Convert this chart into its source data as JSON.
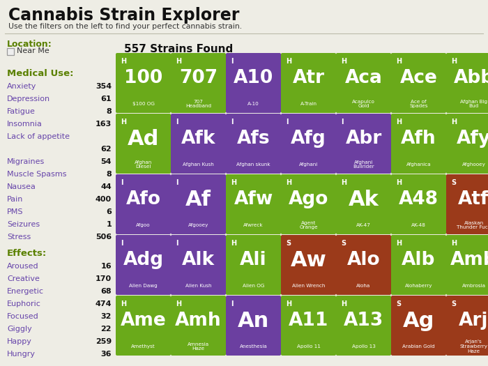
{
  "title": "Cannabis Strain Explorer",
  "subtitle": "Use the filters on the left to find your perfect cannabis strain.",
  "strains_found": "557 Strains Found",
  "bg_color": "#eeede5",
  "color_H": "#6aaa1a",
  "color_I": "#6b3fa0",
  "color_S": "#9b3a1a",
  "left_panel": {
    "location_label": "Location:",
    "near_me": "Near Me",
    "medical_label": "Medical Use:",
    "medical": [
      [
        "Anxiety",
        "354"
      ],
      [
        "Depression",
        "61"
      ],
      [
        "Fatigue",
        "8"
      ],
      [
        "Insomnia",
        "163"
      ],
      [
        "Lack of appetite",
        ""
      ],
      [
        "",
        "62"
      ],
      [
        "Migraines",
        "54"
      ],
      [
        "Muscle Spasms",
        "8"
      ],
      [
        "Nausea",
        "44"
      ],
      [
        "Pain",
        "400"
      ],
      [
        "PMS",
        "6"
      ],
      [
        "Seizures",
        "1"
      ],
      [
        "Stress",
        "506"
      ]
    ],
    "effects_label": "Effects:",
    "effects": [
      [
        "Aroused",
        "16"
      ],
      [
        "Creative",
        "170"
      ],
      [
        "Energetic",
        "68"
      ],
      [
        "Euphoric",
        "474"
      ],
      [
        "Focused",
        "32"
      ],
      [
        "Giggly",
        "22"
      ],
      [
        "Happy",
        "259"
      ],
      [
        "Hungry",
        "36"
      ]
    ]
  },
  "strains": [
    {
      "symbol": "100",
      "type": "H",
      "name": "$100 OG",
      "color": "H"
    },
    {
      "symbol": "707",
      "type": "H",
      "name": "707\nHeadband",
      "color": "H"
    },
    {
      "symbol": "A10",
      "type": "I",
      "name": "A-10",
      "color": "I"
    },
    {
      "symbol": "Atr",
      "type": "H",
      "name": "A-Train",
      "color": "H"
    },
    {
      "symbol": "Aca",
      "type": "H",
      "name": "Acapulco\nGold",
      "color": "H"
    },
    {
      "symbol": "Ace",
      "type": "H",
      "name": "Ace of\nSpades",
      "color": "H"
    },
    {
      "symbol": "Abb",
      "type": "H",
      "name": "Afghan Big\nBud",
      "color": "H"
    },
    {
      "symbol": "Ad",
      "type": "H",
      "name": "Afghan\nDiesel",
      "color": "H"
    },
    {
      "symbol": "Afk",
      "type": "I",
      "name": "Afghan Kush",
      "color": "I"
    },
    {
      "symbol": "Afs",
      "type": "I",
      "name": "Afghan skunk",
      "color": "I"
    },
    {
      "symbol": "Afg",
      "type": "I",
      "name": "Afghani",
      "color": "I"
    },
    {
      "symbol": "Abr",
      "type": "I",
      "name": "Afghani\nBullrider",
      "color": "I"
    },
    {
      "symbol": "Afh",
      "type": "H",
      "name": "Afghanica",
      "color": "H"
    },
    {
      "symbol": "Afy",
      "type": "H",
      "name": "Afghooey",
      "color": "H"
    },
    {
      "symbol": "Afo",
      "type": "I",
      "name": "Afgoo",
      "color": "I"
    },
    {
      "symbol": "Af",
      "type": "I",
      "name": "Afgooey",
      "color": "I"
    },
    {
      "symbol": "Afw",
      "type": "H",
      "name": "Afwreck",
      "color": "H"
    },
    {
      "symbol": "Ago",
      "type": "H",
      "name": "Agent\nOrange",
      "color": "H"
    },
    {
      "symbol": "Ak",
      "type": "H",
      "name": "AK-47",
      "color": "H"
    },
    {
      "symbol": "A48",
      "type": "H",
      "name": "AK-48",
      "color": "H"
    },
    {
      "symbol": "Atf",
      "type": "S",
      "name": "Alaskan\nThunder Fuck",
      "color": "S"
    },
    {
      "symbol": "Adg",
      "type": "I",
      "name": "Alien Dawg",
      "color": "I"
    },
    {
      "symbol": "Alk",
      "type": "I",
      "name": "Alien Kush",
      "color": "I"
    },
    {
      "symbol": "Ali",
      "type": "H",
      "name": "Alien OG",
      "color": "H"
    },
    {
      "symbol": "Aw",
      "type": "S",
      "name": "Alien Wrench",
      "color": "S"
    },
    {
      "symbol": "Alo",
      "type": "S",
      "name": "Aloha",
      "color": "S"
    },
    {
      "symbol": "Alb",
      "type": "H",
      "name": "Alohaberry",
      "color": "H"
    },
    {
      "symbol": "Amb",
      "type": "H",
      "name": "Ambrosia",
      "color": "H"
    },
    {
      "symbol": "Ame",
      "type": "H",
      "name": "Amethyst",
      "color": "H"
    },
    {
      "symbol": "Amh",
      "type": "H",
      "name": "Amnesia\nHaze",
      "color": "H"
    },
    {
      "symbol": "An",
      "type": "I",
      "name": "Anesthesia",
      "color": "I"
    },
    {
      "symbol": "A11",
      "type": "H",
      "name": "Apollo 11",
      "color": "H"
    },
    {
      "symbol": "A13",
      "type": "H",
      "name": "Apollo 13",
      "color": "H"
    },
    {
      "symbol": "Ag",
      "type": "S",
      "name": "Arabian Gold",
      "color": "S"
    },
    {
      "symbol": "Arj",
      "type": "S",
      "name": "Arjan's\nStrawberry\nHaze",
      "color": "S"
    }
  ],
  "grid_cols": 7
}
